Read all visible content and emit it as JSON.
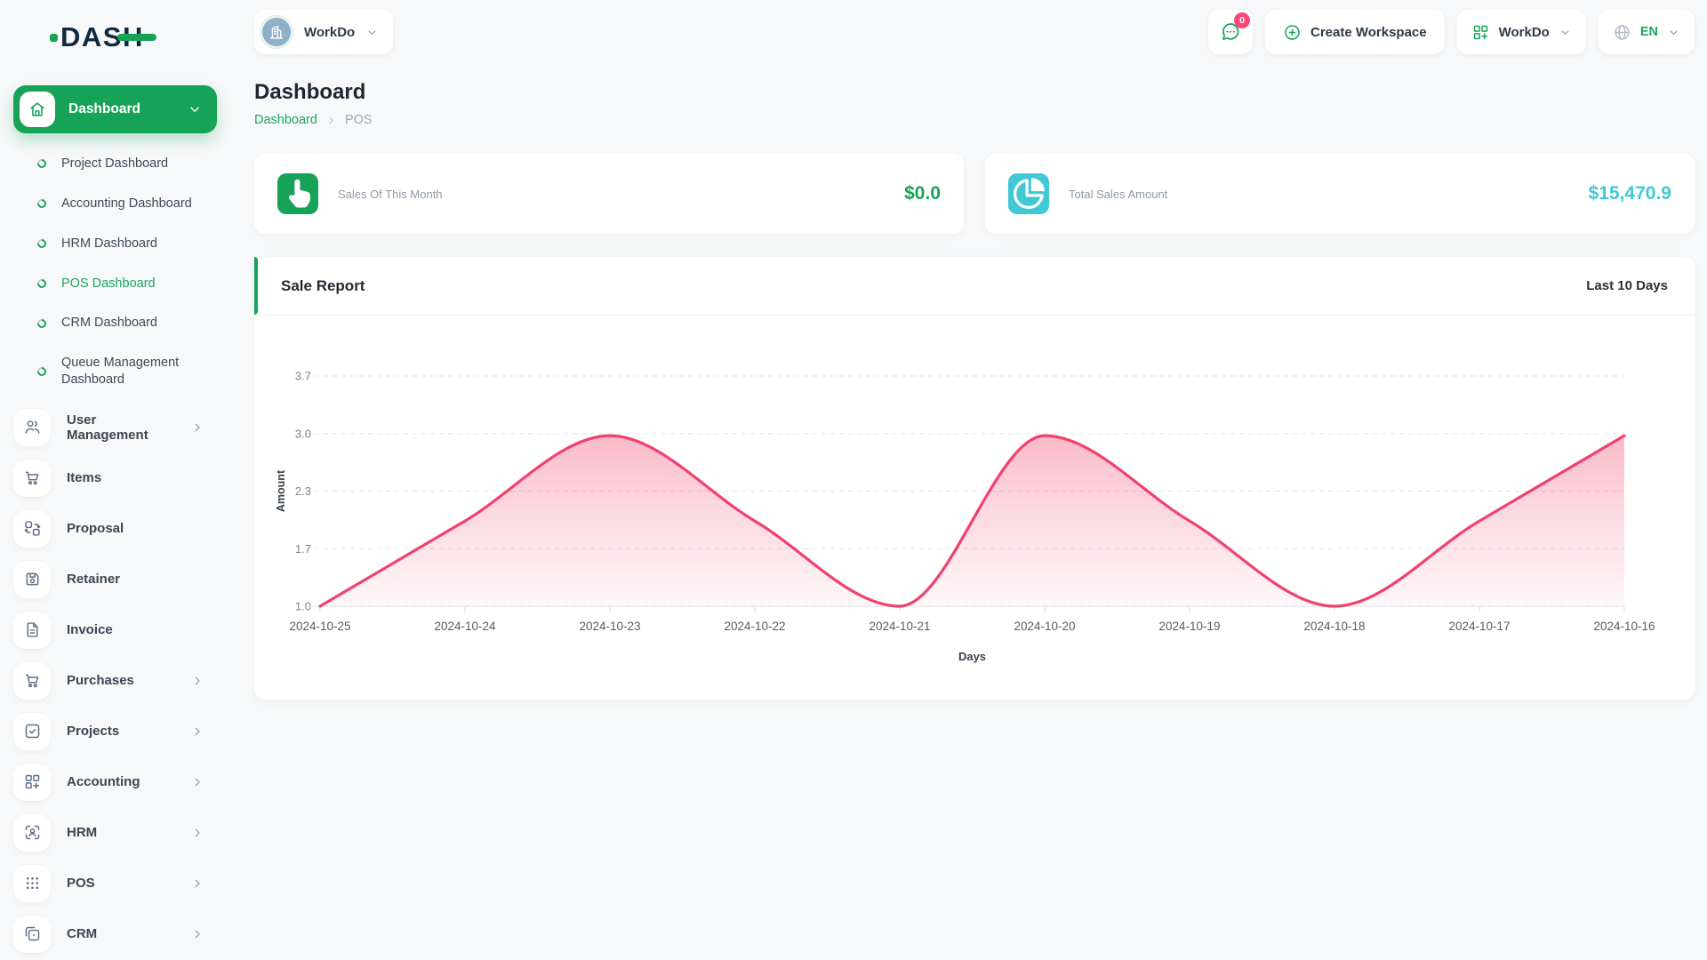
{
  "colors": {
    "brand_green": "#16a257",
    "teal": "#41c8d5",
    "chart_pink": "#f1416c",
    "badge_pink": "#f8487a"
  },
  "brand": {
    "logo_text": "DASH"
  },
  "topbar": {
    "workspace": {
      "label": "WorkDo",
      "icon": "building-icon"
    },
    "messages": {
      "badge": "0",
      "icon": "chat-icon"
    },
    "create_workspace": {
      "label": "Create Workspace",
      "icon": "plus-circle-icon"
    },
    "workspace_menu": {
      "label": "WorkDo",
      "icon": "grid-plus-icon"
    },
    "language": {
      "label": "EN",
      "icon": "globe-icon"
    }
  },
  "sidebar": {
    "dashboard": {
      "label": "Dashboard",
      "icon": "home-icon"
    },
    "dashboard_children": [
      {
        "label": "Project Dashboard",
        "active": false
      },
      {
        "label": "Accounting Dashboard",
        "active": false
      },
      {
        "label": "HRM Dashboard",
        "active": false
      },
      {
        "label": "POS Dashboard",
        "active": true
      },
      {
        "label": "CRM Dashboard",
        "active": false
      },
      {
        "label": "Queue Management Dashboard",
        "active": false
      }
    ],
    "items": [
      {
        "label": "User Management",
        "icon": "users-icon",
        "expandable": true
      },
      {
        "label": "Items",
        "icon": "cart-icon",
        "expandable": false
      },
      {
        "label": "Proposal",
        "icon": "swap-boxes-icon",
        "expandable": false
      },
      {
        "label": "Retainer",
        "icon": "save-icon",
        "expandable": false
      },
      {
        "label": "Invoice",
        "icon": "file-invoice-icon",
        "expandable": false
      },
      {
        "label": "Purchases",
        "icon": "cart-icon",
        "expandable": true
      },
      {
        "label": "Projects",
        "icon": "check-square-icon",
        "expandable": true
      },
      {
        "label": "Accounting",
        "icon": "grid-plus-icon",
        "expandable": true
      },
      {
        "label": "HRM",
        "icon": "user-scan-icon",
        "expandable": true
      },
      {
        "label": "POS",
        "icon": "dots-grid-icon",
        "expandable": true
      },
      {
        "label": "CRM",
        "icon": "overlap-squares-icon",
        "expandable": true
      }
    ]
  },
  "page": {
    "title": "Dashboard",
    "breadcrumb": {
      "link": "Dashboard",
      "current": "POS"
    }
  },
  "stats": [
    {
      "label": "Sales Of This Month",
      "value": "$0.0",
      "icon": "tap-icon",
      "accent": "#16a257",
      "value_color": "#16a257"
    },
    {
      "label": "Total Sales Amount",
      "value": "$15,470.9",
      "icon": "pie-chart-icon",
      "accent": "#41c8d5",
      "value_color": "#41c8d5"
    }
  ],
  "report": {
    "title": "Sale Report",
    "range": "Last 10 Days"
  },
  "chart_data": {
    "type": "area",
    "title": "Sale Report",
    "x": [
      "2024-10-25",
      "2024-10-24",
      "2024-10-23",
      "2024-10-22",
      "2024-10-21",
      "2024-10-20",
      "2024-10-19",
      "2024-10-18",
      "2024-10-17",
      "2024-10-16"
    ],
    "values": [
      1,
      2,
      3,
      2,
      1,
      3,
      2,
      1,
      2,
      3
    ],
    "xlabel": "Days",
    "ylabel": "Amount",
    "ylim": [
      1.0,
      3.7
    ],
    "ytick_labels": [
      "1.0",
      "1.7",
      "2.3",
      "3.0",
      "3.7"
    ],
    "grid": "horizontal-dashed",
    "legend": "none",
    "line_color": "#f1416c",
    "fill": "vertical pink gradient"
  }
}
